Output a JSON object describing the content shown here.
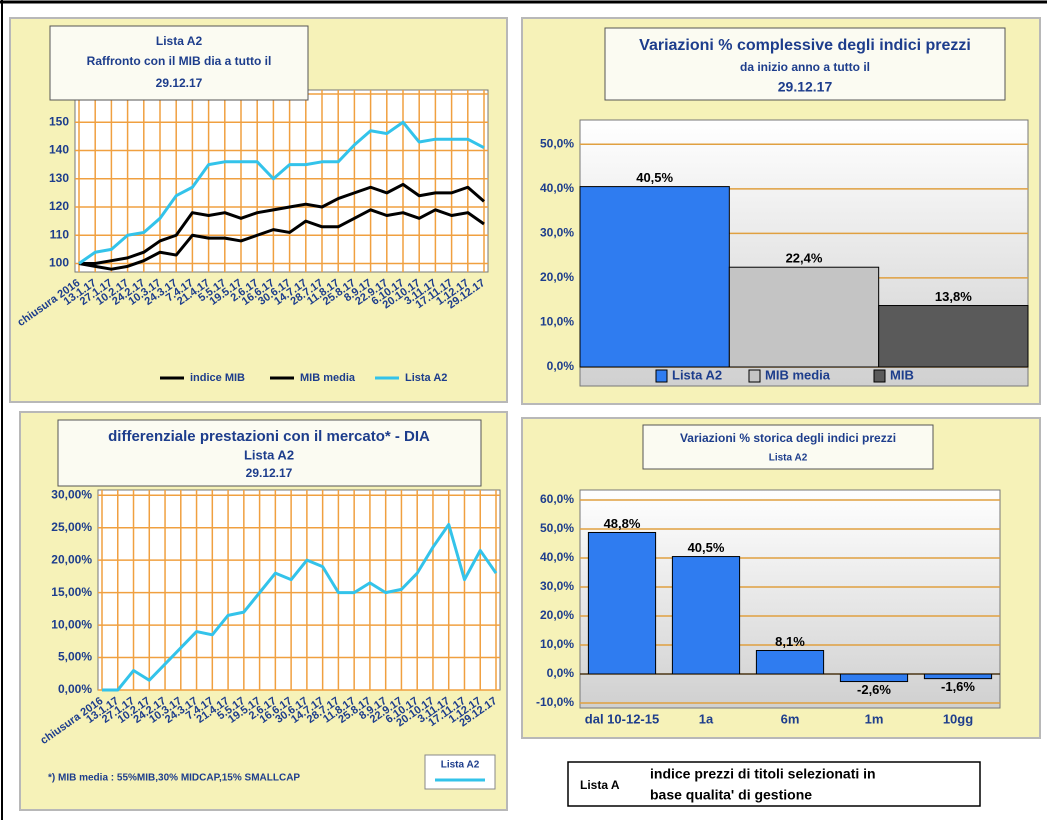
{
  "chart_data": [
    {
      "type": "line",
      "title": "Lista  A2",
      "subtitle": "Raffronto   con il MIB   dia a tutto il",
      "date": "29.12.17",
      "categories": [
        "chiusura 2016",
        "13.1.17",
        "27.1.17",
        "10.2.17",
        "24.2.17",
        "10.3.17",
        "24.3.17",
        "7.4.17",
        "21.4.17",
        "5.5.17",
        "19.5.17",
        "2.6.17",
        "16.6.17",
        "30.6.17",
        "14.7.17",
        "28.7.17",
        "11.8.17",
        "25.8.17",
        "8.9.17",
        "22.9.17",
        "6.10.17",
        "20.10.17",
        "3.11.17",
        "17.11.17",
        "1.12.17",
        "29.12.17"
      ],
      "series": [
        {
          "name": "indice MIB",
          "color": "#000000",
          "values": [
            100,
            99,
            98,
            99,
            101,
            104,
            103,
            110,
            109,
            109,
            108,
            110,
            112,
            111,
            115,
            113,
            113,
            116,
            119,
            117,
            118,
            116,
            119,
            117,
            118,
            114
          ]
        },
        {
          "name": "MIB media",
          "color": "#000000",
          "values": [
            100,
            100,
            101,
            102,
            104,
            108,
            110,
            118,
            117,
            118,
            116,
            118,
            119,
            120,
            121,
            120,
            123,
            125,
            127,
            125,
            128,
            124,
            125,
            125,
            127,
            122
          ]
        },
        {
          "name": "Lista  A2",
          "color": "#33c3ea",
          "values": [
            100,
            104,
            105,
            110,
            111,
            116,
            124,
            127,
            135,
            136,
            136,
            136,
            130,
            135,
            135,
            136,
            136,
            142,
            147,
            146,
            150,
            143,
            144,
            144,
            144,
            141
          ]
        }
      ],
      "ylim": [
        97,
        160
      ],
      "yticks": [
        100,
        110,
        120,
        130,
        140,
        150,
        160
      ],
      "grid": true,
      "grid_color": "#f0a040"
    },
    {
      "type": "bar",
      "title": "Variazioni % complessive degli indici prezzi",
      "subtitle": "da inizio anno a tutto il",
      "date": "29.12.17",
      "categories": [
        "Lista  A2",
        "MIB media",
        "MIB"
      ],
      "values": [
        40.5,
        22.4,
        13.8
      ],
      "value_labels": [
        "40,5%",
        "22,4%",
        "13,8%"
      ],
      "colors": [
        "#2f7cf0",
        "#c4c4c4",
        "#5a5a5a"
      ],
      "ylim": [
        0,
        55
      ],
      "yticks": [
        {
          "value": 0,
          "label": "0,0%"
        },
        {
          "value": 10,
          "label": "10,0%"
        },
        {
          "value": 20,
          "label": "20,0%"
        },
        {
          "value": 30,
          "label": "30,0%"
        },
        {
          "value": 40,
          "label": "40,0%"
        },
        {
          "value": 50,
          "label": "50,0%"
        }
      ],
      "grid": true,
      "grid_color": "#e0a040"
    },
    {
      "type": "line",
      "title": "differenziale prestazioni  con il mercato* - DIA",
      "subtitle": "Lista  A2",
      "date": "29.12.17",
      "note": "*) MIB media : 55%MIB,30% MIDCAP,15% SMALLCAP",
      "categories": [
        "chiusura 2016",
        "13.1.17",
        "27.1.17",
        "10.2.17",
        "24.2.17",
        "10.3.17",
        "24.3.17",
        "7.4.17",
        "21.4.17",
        "5.5.17",
        "19.5.17",
        "2.6.17",
        "16.6.17",
        "30.6.17",
        "14.7.17",
        "28.7.17",
        "11.8.17",
        "25.8.17",
        "8.9.17",
        "22.9.17",
        "6.10.17",
        "20.10.17",
        "3.11.17",
        "17.11.17",
        "1.12.17",
        "29.12.17"
      ],
      "series": [
        {
          "name": "Lista  A2",
          "color": "#33c3ea",
          "values": [
            0,
            0,
            3,
            1.5,
            4,
            6.5,
            9,
            8.5,
            11.5,
            12,
            15,
            18,
            17,
            20,
            19,
            15,
            15,
            16.5,
            15,
            15.5,
            18,
            22,
            25.5,
            17,
            21.5,
            18
          ]
        }
      ],
      "ylim": [
        0,
        30.5
      ],
      "yticks": [
        {
          "value": 0,
          "label": "0,00%"
        },
        {
          "value": 5,
          "label": "5,00%"
        },
        {
          "value": 10,
          "label": "10,00%"
        },
        {
          "value": 15,
          "label": "15,00%"
        },
        {
          "value": 20,
          "label": "20,00%"
        },
        {
          "value": 25,
          "label": "25,00%"
        },
        {
          "value": 30,
          "label": "30,00%"
        }
      ],
      "grid": true,
      "grid_color": "#f0a040"
    },
    {
      "type": "bar",
      "title": "Variazioni % storica degli indici prezzi",
      "subtitle": "Lista  A2",
      "categories": [
        "dal 10-12-15",
        "1a",
        "6m",
        "1m",
        "10gg"
      ],
      "values": [
        48.8,
        40.5,
        8.1,
        -2.6,
        -1.6
      ],
      "value_labels": [
        "48,8%",
        "40,5%",
        "8,1%",
        "-2,6%",
        "-1,6%"
      ],
      "color": "#2f7cf0",
      "ylim": [
        -10,
        60
      ],
      "yticks": [
        {
          "value": -10,
          "label": "-10,0%"
        },
        {
          "value": 0,
          "label": "0,0%"
        },
        {
          "value": 10,
          "label": "10,0%"
        },
        {
          "value": 20,
          "label": "20,0%"
        },
        {
          "value": 30,
          "label": "30,0%"
        },
        {
          "value": 40,
          "label": "40,0%"
        },
        {
          "value": 50,
          "label": "50,0%"
        },
        {
          "value": 60,
          "label": "60,0%"
        }
      ],
      "grid": true,
      "grid_color": "#e0a040"
    }
  ],
  "legend_note": {
    "label": "Lista A",
    "text": [
      "indice prezzi  di titoli selezionati in",
      "base qualita' di gestione"
    ]
  }
}
